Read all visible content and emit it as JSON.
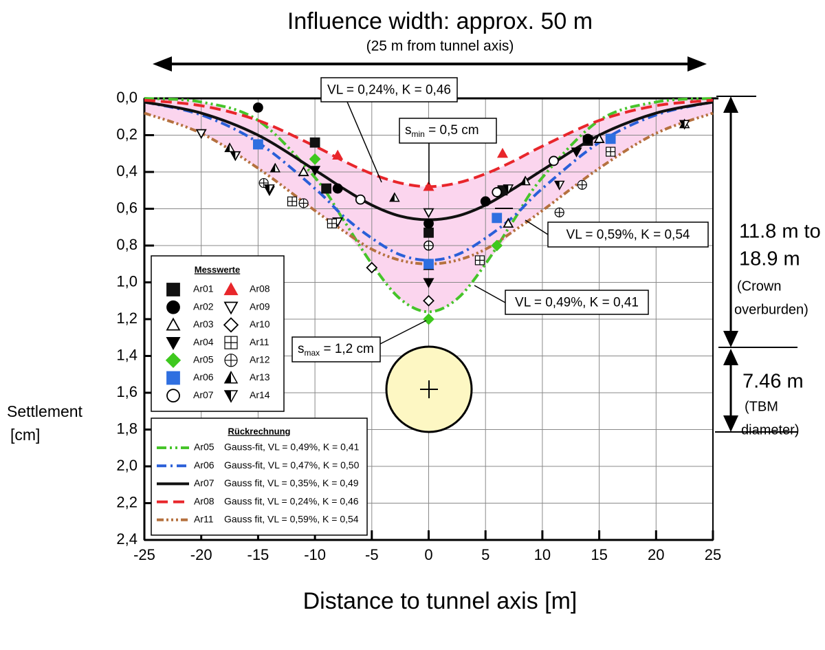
{
  "chart_data": {
    "type": "scatter",
    "title": "Influence width: approx. 50 m",
    "subtitle": "(25 m from tunnel axis)",
    "xlabel": "Distance to tunnel axis [m]",
    "ylabel": [
      "Settlement",
      "[cm]"
    ],
    "xlim": [
      -25,
      25
    ],
    "ylim": [
      0,
      2.4
    ],
    "y_inverted": true,
    "grid": true,
    "xticks": [
      -25,
      -20,
      -15,
      -10,
      -5,
      0,
      5,
      10,
      15,
      20,
      25
    ],
    "yticks": [
      {
        "value": 0,
        "label": "0,0"
      },
      {
        "value": 0.2,
        "label": "0,2"
      },
      {
        "value": 0.4,
        "label": "0,4"
      },
      {
        "value": 0.6,
        "label": "0,6"
      },
      {
        "value": 0.8,
        "label": "0,8"
      },
      {
        "value": 1,
        "label": "1,0"
      },
      {
        "value": 1.2,
        "label": "1,2"
      },
      {
        "value": 1.4,
        "label": "1,4"
      },
      {
        "value": 1.6,
        "label": "1,6"
      },
      {
        "value": 1.8,
        "label": "1,8"
      },
      {
        "value": 2,
        "label": "2,0"
      },
      {
        "value": 2.2,
        "label": "2,2"
      },
      {
        "value": 2.4,
        "label": "2,4"
      }
    ],
    "measured_legend_title": "Messwerte",
    "fit_legend_title": "Rückrechnung",
    "shade_color": "#fbd5ee",
    "series": [
      {
        "name": "Ar01",
        "marker": "square",
        "filled": true,
        "color": "#111111",
        "x": [
          -10,
          -9,
          0,
          6.5,
          14
        ],
        "values": [
          0.24,
          0.49,
          0.73,
          0.5,
          0.23
        ]
      },
      {
        "name": "Ar02",
        "marker": "circle",
        "filled": true,
        "color": "#000000",
        "x": [
          -15,
          -8,
          0,
          5,
          14
        ],
        "values": [
          0.05,
          0.49,
          0.68,
          0.56,
          0.22
        ]
      },
      {
        "name": "Ar03",
        "marker": "triangle-up",
        "filled": false,
        "color": "#000000",
        "x": [
          -11,
          0,
          7,
          15
        ],
        "values": [
          0.4,
          0.91,
          0.68,
          0.22
        ]
      },
      {
        "name": "Ar04",
        "marker": "triangle-down",
        "filled": true,
        "color": "#000000",
        "x": [
          -14,
          -10,
          0,
          13
        ],
        "values": [
          0.5,
          0.39,
          1.0,
          0.29
        ]
      },
      {
        "name": "Ar05",
        "marker": "diamond",
        "filled": true,
        "color": "#3ec81e",
        "x": [
          -10,
          0,
          6
        ],
        "values": [
          0.33,
          1.2,
          0.8
        ]
      },
      {
        "name": "Ar06",
        "marker": "square",
        "filled": true,
        "color": "#2f6fe0",
        "x": [
          -15,
          0,
          6,
          16
        ],
        "values": [
          0.25,
          0.9,
          0.65,
          0.22
        ]
      },
      {
        "name": "Ar07",
        "marker": "circle",
        "filled": false,
        "color": "#000000",
        "x": [
          -6,
          0,
          6,
          11
        ],
        "values": [
          0.55,
          0.8,
          0.51,
          0.34
        ]
      },
      {
        "name": "Ar08",
        "marker": "triangle-up",
        "filled": true,
        "color": "#e8262b",
        "x": [
          -8,
          0,
          6.5
        ],
        "values": [
          0.31,
          0.48,
          0.3
        ]
      },
      {
        "name": "Ar09",
        "marker": "triangle-down",
        "filled": false,
        "color": "#000000",
        "x": [
          -20,
          -17,
          -8,
          0
        ],
        "values": [
          0.19,
          0.31,
          0.67,
          0.62
        ]
      },
      {
        "name": "Ar10",
        "marker": "diamond",
        "filled": false,
        "color": "#000000",
        "x": [
          -5,
          0
        ],
        "values": [
          0.92,
          1.1
        ]
      },
      {
        "name": "Ar11",
        "marker": "square-plus",
        "filled": false,
        "color": "#000000",
        "x": [
          -12,
          -8.5,
          4.5,
          16
        ],
        "values": [
          0.56,
          0.68,
          0.88,
          0.29
        ]
      },
      {
        "name": "Ar12",
        "marker": "circle-plus",
        "filled": false,
        "color": "#000000",
        "x": [
          -14.5,
          -11,
          0,
          11.5,
          13.5
        ],
        "values": [
          0.46,
          0.57,
          0.8,
          0.62,
          0.47
        ]
      },
      {
        "name": "Ar13",
        "marker": "triangle-up-half",
        "filled": false,
        "color": "#000000",
        "x": [
          -17.5,
          -13.5,
          -3,
          8.5,
          22.5
        ],
        "values": [
          0.27,
          0.38,
          0.54,
          0.45,
          0.14
        ]
      },
      {
        "name": "Ar14",
        "marker": "triangle-down-half",
        "filled": false,
        "color": "#000000",
        "x": [
          -17,
          -14,
          7,
          11.5,
          22.5
        ],
        "values": [
          0.31,
          0.49,
          0.49,
          0.47,
          0.14
        ]
      }
    ],
    "fits": [
      {
        "type": "line",
        "name": "Ar05",
        "label": "Gauss-fit, VL = 0,49%, K = 0,41",
        "color": "#46c42a",
        "style": "dashdotdot",
        "x": [
          -25,
          -20,
          -15,
          -10,
          -7.5,
          -5,
          -2.5,
          0,
          2.5,
          5,
          7.5,
          10,
          15,
          20,
          25
        ],
        "values": [
          0,
          0.02,
          0.12,
          0.43,
          0.66,
          0.9,
          1.09,
          1.16,
          1.09,
          0.9,
          0.66,
          0.43,
          0.12,
          0.02,
          0
        ]
      },
      {
        "type": "line",
        "name": "Ar06",
        "label": "Gauss-fit, VL = 0,47%, K = 0,50",
        "color": "#2a5fd8",
        "style": "dashdot",
        "x": [
          -25,
          -20,
          -15,
          -10,
          -7.5,
          -5,
          -2.5,
          0,
          2.5,
          5,
          7.5,
          10,
          15,
          20,
          25
        ],
        "values": [
          0.02,
          0.09,
          0.24,
          0.49,
          0.64,
          0.76,
          0.85,
          0.88,
          0.85,
          0.76,
          0.64,
          0.49,
          0.24,
          0.09,
          0.02
        ]
      },
      {
        "type": "line",
        "name": "Ar07",
        "label": "Gauss fit, VL = 0,35%, K = 0,49",
        "color": "#111111",
        "style": "solid",
        "x": [
          -25,
          -20,
          -15,
          -10,
          -7.5,
          -5,
          -2.5,
          0,
          2.5,
          5,
          7.5,
          10,
          15,
          20,
          25
        ],
        "values": [
          0.02,
          0.08,
          0.2,
          0.39,
          0.49,
          0.58,
          0.64,
          0.66,
          0.64,
          0.58,
          0.49,
          0.39,
          0.2,
          0.08,
          0.02
        ]
      },
      {
        "type": "line",
        "name": "Ar08",
        "label": "Gauss fit, VL = 0,24%, K = 0,46",
        "color": "#e8262b",
        "style": "dashed",
        "x": [
          -25,
          -20,
          -15,
          -10,
          -7.5,
          -5,
          -2.5,
          0,
          2.5,
          5,
          7.5,
          10,
          15,
          20,
          25
        ],
        "values": [
          0.01,
          0.04,
          0.12,
          0.26,
          0.34,
          0.41,
          0.46,
          0.48,
          0.46,
          0.41,
          0.34,
          0.26,
          0.12,
          0.04,
          0.01
        ]
      },
      {
        "type": "line",
        "name": "Ar11",
        "label": "Gauss fit, VL = 0,59%, K = 0,54",
        "color": "#b5713f",
        "style": "dashdotdotdot",
        "x": [
          -25,
          -20,
          -15,
          -10,
          -7.5,
          -5,
          -2.5,
          0,
          2.5,
          5,
          7.5,
          10,
          15,
          20,
          25
        ],
        "values": [
          0.08,
          0.19,
          0.38,
          0.61,
          0.72,
          0.82,
          0.88,
          0.9,
          0.88,
          0.82,
          0.72,
          0.61,
          0.38,
          0.19,
          0.08
        ]
      }
    ],
    "annotations": [
      {
        "text": "VL = 0,24%, K = 0,46"
      },
      {
        "parts": [
          "s",
          "min",
          " = 0,5 cm"
        ]
      },
      {
        "text": "VL = 0,59%, K = 0,54"
      },
      {
        "text": "VL = 0,49%, K = 0,41"
      },
      {
        "parts": [
          "s",
          "max",
          " = 1,2 cm"
        ]
      }
    ],
    "overburden": [
      "11.8 m to",
      "18.9 m",
      "(Crown",
      "overburden)"
    ],
    "diameter": [
      "7.46 m",
      "(TBM",
      "diameter)"
    ]
  }
}
